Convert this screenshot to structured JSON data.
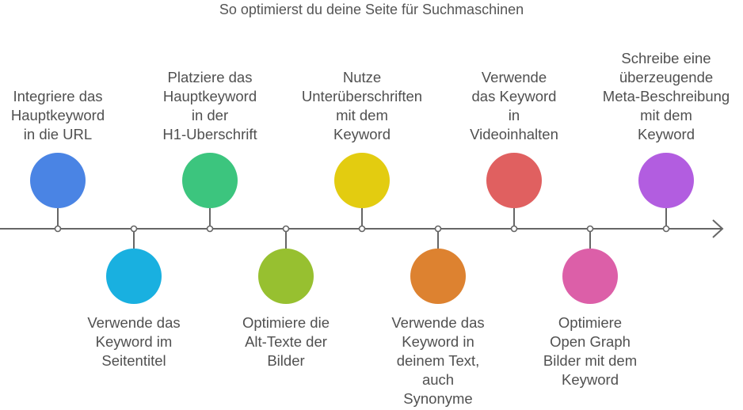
{
  "title": "So optimierst du deine Seite für Suchmaschinen",
  "steps": [
    {
      "lines": [
        "Integriere das",
        "Hauptkeyword",
        "in die URL"
      ],
      "position": "top",
      "color": "#4a84e4"
    },
    {
      "lines": [
        "Verwende das",
        "Keyword im",
        "Seitentitel"
      ],
      "position": "bottom",
      "color": "#19b0e0"
    },
    {
      "lines": [
        "Platziere das",
        "Hauptkeyword",
        "in der",
        "H1-Uberschrift"
      ],
      "position": "top",
      "color": "#3cc57e"
    },
    {
      "lines": [
        "Optimiere die",
        "Alt-Texte der",
        "Bilder"
      ],
      "position": "bottom",
      "color": "#97c030"
    },
    {
      "lines": [
        "Nutze",
        "Unterüberschriften",
        "mit dem",
        "Keyword"
      ],
      "position": "top",
      "color": "#e3cc10"
    },
    {
      "lines": [
        "Verwende das",
        "Keyword in",
        "deinem Text,",
        "auch",
        "Synonyme"
      ],
      "position": "bottom",
      "color": "#dd8230"
    },
    {
      "lines": [
        "Verwende",
        "das Keyword",
        "in",
        "Videoinhalten"
      ],
      "position": "top",
      "color": "#e06060"
    },
    {
      "lines": [
        "Optimiere",
        "Open Graph",
        "Bilder mit dem",
        "Keyword"
      ],
      "position": "bottom",
      "color": "#dc5fa8"
    },
    {
      "lines": [
        "Schreibe eine",
        "überzeugende",
        "Meta-Beschreibung",
        "mit dem",
        "Keyword"
      ],
      "position": "top",
      "color": "#b25de0"
    }
  ]
}
